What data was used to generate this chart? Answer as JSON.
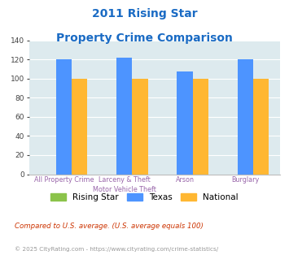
{
  "title_line1": "2011 Rising Star",
  "title_line2": "Property Crime Comparison",
  "cat_labels_line1": [
    "",
    "Larceny & Theft",
    "Arson",
    ""
  ],
  "cat_labels_line2": [
    "All Property Crime",
    "Motor Vehicle Theft",
    "",
    "Burglary"
  ],
  "rising_star": [
    0,
    0,
    0,
    0
  ],
  "texas": [
    120,
    122,
    107,
    120
  ],
  "national": [
    100,
    100,
    100,
    100
  ],
  "colors": {
    "rising_star": "#8bc34a",
    "texas": "#4d94ff",
    "national": "#ffb732"
  },
  "ylim": [
    0,
    140
  ],
  "yticks": [
    0,
    20,
    40,
    60,
    80,
    100,
    120,
    140
  ],
  "background_color": "#ddeaee",
  "title_color": "#1a6bc4",
  "xlabel_color": "#9966aa",
  "legend_labels": [
    "Rising Star",
    "Texas",
    "National"
  ],
  "footnote1": "Compared to U.S. average. (U.S. average equals 100)",
  "footnote2": "© 2025 CityRating.com - https://www.cityrating.com/crime-statistics/",
  "footnote1_color": "#cc3300",
  "footnote2_color": "#999999"
}
